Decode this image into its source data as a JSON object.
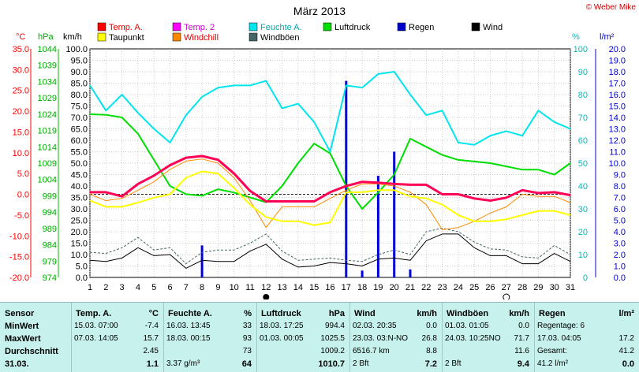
{
  "chart_data": {
    "type": "line",
    "title": "März 2013",
    "copyright": "© Weber Mike",
    "x": [
      1,
      2,
      3,
      4,
      5,
      6,
      7,
      8,
      9,
      10,
      11,
      12,
      13,
      14,
      15,
      16,
      17,
      18,
      19,
      20,
      21,
      22,
      23,
      24,
      25,
      26,
      27,
      28,
      29,
      30,
      31
    ],
    "x_ticks": [
      1,
      2,
      3,
      4,
      5,
      6,
      7,
      8,
      9,
      10,
      11,
      12,
      13,
      14,
      15,
      16,
      17,
      18,
      19,
      20,
      21,
      22,
      23,
      24,
      25,
      26,
      27,
      28,
      29,
      30,
      31
    ],
    "xlim": [
      1,
      31
    ],
    "axes": {
      "temp": {
        "label": "°C",
        "ylim": [
          -20,
          35
        ],
        "color": "#ff0000",
        "ticks": [
          "35.0",
          "30.0",
          "25.0",
          "20.0",
          "15.0",
          "10.0",
          "5.0",
          "0.0",
          "-5.0",
          "-10.0",
          "-15.0",
          "-20.0"
        ]
      },
      "pressure": {
        "label": "hPa",
        "ylim": [
          974,
          1044
        ],
        "color": "#00aa00",
        "ticks": [
          "1044",
          "1039",
          "1034",
          "1029",
          "1024",
          "1019",
          "1014",
          "1009",
          "1004",
          "999",
          "994",
          "989",
          "984",
          "979",
          "974"
        ]
      },
      "wind": {
        "label": "km/h",
        "ylim": [
          0,
          100
        ],
        "color": "#000000",
        "ticks": [
          "100.0",
          "95.0",
          "90.0",
          "85.0",
          "80.0",
          "75.0",
          "70.0",
          "65.0",
          "60.0",
          "55.0",
          "50.0",
          "45.0",
          "40.0",
          "35.0",
          "30.0",
          "25.0",
          "20.0",
          "15.0",
          "10.0",
          "5.0",
          "0.0"
        ]
      },
      "humidity": {
        "label": "%",
        "ylim": [
          0,
          100
        ],
        "color": "#00cccc",
        "ticks": [
          "100",
          "90",
          "80",
          "70",
          "60",
          "50",
          "40",
          "30",
          "20",
          "10",
          "0"
        ]
      },
      "rain": {
        "label": "l/m²",
        "ylim": [
          0,
          20
        ],
        "color": "#0000cc",
        "ticks": [
          "20.0",
          "19.0",
          "18.0",
          "17.0",
          "16.0",
          "15.0",
          "14.0",
          "13.0",
          "12.0",
          "11.0",
          "10.0",
          "9.0",
          "8.0",
          "7.0",
          "6.0",
          "5.0",
          "4.0",
          "3.0",
          "2.0",
          "1.0",
          "0.0"
        ]
      }
    },
    "series": [
      {
        "name": "Temp. A.",
        "axis": "temp",
        "color": "#ff0055",
        "width": 3,
        "values": [
          0.5,
          0.5,
          -0.5,
          2.5,
          4.5,
          7.0,
          8.8,
          9.2,
          8.3,
          5.0,
          0.8,
          -1.7,
          -1.7,
          -1.7,
          -1.7,
          0.5,
          2.0,
          3.0,
          2.8,
          2.5,
          2.3,
          2.3,
          0.0,
          0.0,
          -1.0,
          -1.5,
          -0.8,
          1.0,
          0.3,
          0.5,
          -0.2
        ]
      },
      {
        "name": "Temp. 2",
        "axis": "temp",
        "color": "#ff33cc",
        "width": 1,
        "values": [
          0.5,
          0.5,
          -0.3,
          2.6,
          4.7,
          7.2,
          8.9,
          9.4,
          8.5,
          5.2,
          1.0,
          -1.6,
          -1.6,
          -1.6,
          -1.6,
          0.6,
          2.1,
          3.1,
          2.9,
          2.6,
          2.4,
          2.4,
          0.1,
          0.1,
          -0.9,
          -1.4,
          -0.7,
          1.1,
          0.4,
          0.6,
          -0.1
        ]
      },
      {
        "name": "Taupunkt",
        "axis": "temp",
        "color": "#ffff00",
        "width": 2,
        "values": [
          -1.5,
          -3.0,
          -3.0,
          -2.0,
          -0.8,
          0.0,
          4.0,
          5.5,
          5.0,
          1.5,
          -2.5,
          -5.5,
          -6.5,
          -6.5,
          -7.4,
          -6.8,
          0.5,
          0.5,
          1.0,
          1.0,
          -0.5,
          -1.0,
          -2.5,
          -5.0,
          -6.5,
          -6.5,
          -6.0,
          -5.0,
          -4.0,
          -4.0,
          -5.0
        ]
      },
      {
        "name": "Windchill",
        "axis": "temp",
        "color": "#ff8800",
        "width": 1,
        "values": [
          0.0,
          -1.5,
          -1.0,
          1.0,
          3.0,
          6.0,
          8.0,
          8.5,
          7.5,
          4.0,
          -1.5,
          -8.0,
          -3.0,
          -3.0,
          -3.0,
          -1.0,
          1.0,
          2.5,
          2.5,
          2.0,
          0.5,
          -2.5,
          -8.5,
          -8.0,
          -6.5,
          -4.5,
          -3.0,
          0.0,
          -0.5,
          -0.5,
          -2.0
        ]
      },
      {
        "name": "Feuchte A.",
        "axis": "humidity",
        "color": "#00e5ee",
        "width": 2,
        "values": [
          84,
          73,
          80,
          72,
          65,
          59,
          71,
          79,
          83,
          84,
          84,
          86,
          74,
          76,
          68,
          55,
          84,
          83,
          89,
          90,
          80,
          71,
          73,
          59,
          58,
          62,
          64,
          62,
          73,
          68,
          65
        ]
      },
      {
        "name": "Luftdruck",
        "axis": "pressure",
        "color": "#00dd00",
        "width": 2,
        "values": [
          1024.0,
          1023.8,
          1023.0,
          1018.0,
          1010.0,
          1002.0,
          999.5,
          999.0,
          1001.0,
          1000.0,
          998.5,
          997.0,
          1002.0,
          1009.0,
          1015.0,
          1012.0,
          1002.0,
          995.0,
          1000.0,
          1005.5,
          1016.5,
          1014.0,
          1011.5,
          1010.0,
          1009.5,
          1009.0,
          1008.0,
          1007.0,
          1007.0,
          1005.5,
          1009.0
        ]
      },
      {
        "name": "Regen",
        "axis": "rain",
        "color": "#0000dd",
        "width": 3,
        "bars": [
          {
            "x": 8,
            "v": 2.8
          },
          {
            "x": 17,
            "v": 17.2
          },
          {
            "x": 18,
            "v": 0.6
          },
          {
            "x": 19,
            "v": 8.9
          },
          {
            "x": 20,
            "v": 11.0
          },
          {
            "x": 21,
            "v": 0.7
          }
        ]
      },
      {
        "name": "Wind",
        "axis": "wind",
        "color": "#000000",
        "width": 1,
        "values": [
          7.5,
          7.0,
          8.5,
          13.0,
          9.5,
          10.0,
          4.0,
          7.5,
          7.0,
          7.0,
          11.5,
          14.5,
          8.0,
          4.5,
          5.0,
          6.5,
          6.0,
          5.0,
          8.0,
          8.5,
          7.5,
          16.0,
          19.0,
          19.0,
          13.0,
          9.5,
          9.5,
          6.0,
          6.0,
          10.5,
          7.0
        ]
      },
      {
        "name": "Windböen",
        "axis": "wind",
        "color": "#446666",
        "width": 1,
        "dashed": true,
        "values": [
          11.0,
          10.5,
          13.0,
          17.5,
          12.0,
          13.0,
          6.0,
          11.0,
          12.0,
          12.0,
          15.0,
          19.0,
          11.5,
          7.5,
          8.0,
          8.5,
          7.5,
          7.0,
          10.0,
          12.0,
          10.0,
          20.0,
          21.5,
          20.0,
          15.5,
          12.5,
          12.0,
          9.0,
          8.5,
          14.0,
          10.0
        ]
      }
    ],
    "legend": [
      {
        "label": "Temp. A.",
        "color": "#ff0000"
      },
      {
        "label": "Temp. 2",
        "color": "#ff00ff"
      },
      {
        "label": "Feuchte A.",
        "color": "#00e5ee"
      },
      {
        "label": "Luftdruck",
        "color": "#00dd00"
      },
      {
        "label": "Regen",
        "color": "#0000cc"
      },
      {
        "label": "Wind",
        "color": "#000000"
      },
      {
        "label": "Taupunkt",
        "color": "#ffff00"
      },
      {
        "label": "Windchill",
        "color": "#ff8800"
      },
      {
        "label": "Windböen",
        "color": "#446666"
      }
    ],
    "grid": true
  },
  "stats": {
    "columns": [
      {
        "header": "Sensor",
        "unit": "",
        "rows": [
          "MinWert",
          "MaxWert",
          "Durchschnitt"
        ],
        "last": "31.03."
      },
      {
        "header": "Temp. A.",
        "unit": "°C",
        "rows": [
          [
            "15.03.  07:00",
            "-7.4"
          ],
          [
            "07.03.  14:05",
            "15.7"
          ],
          [
            "",
            "2.45"
          ]
        ],
        "last": [
          "",
          "1.1"
        ]
      },
      {
        "header": "Feuchte A.",
        "unit": "%",
        "rows": [
          [
            "16.03.  13:45",
            "33"
          ],
          [
            "18.03.  00:15",
            "93"
          ],
          [
            "",
            "73"
          ]
        ],
        "last": [
          "3.37 g/m³",
          "64"
        ]
      },
      {
        "header": "Luftdruck",
        "unit": "hPa",
        "rows": [
          [
            "18.03.  17:25",
            "994.4"
          ],
          [
            "01.03.  00:05",
            "1025.5"
          ],
          [
            "",
            "1009.2"
          ]
        ],
        "last": [
          "",
          "1010.7"
        ]
      },
      {
        "header": "Wind",
        "unit": "km/h",
        "rows": [
          [
            "02.03.  20:35",
            "0.0"
          ],
          [
            "23.03.  03:N-NO",
            "26.8"
          ],
          [
            "6516.7 km",
            "8.8"
          ]
        ],
        "last": [
          "2 Bft",
          "7.2"
        ]
      },
      {
        "header": "Windböen",
        "unit": "km/h",
        "rows": [
          [
            "01.03.  01:05",
            "0.0"
          ],
          [
            "24.03.  10:25NO",
            "71.7"
          ],
          [
            "",
            "11.6"
          ]
        ],
        "last": [
          "2 Bft",
          "9.4"
        ]
      },
      {
        "header": "Regen",
        "unit": "l/m²",
        "rows": [
          [
            "Regentage: 6",
            ""
          ],
          [
            "17.03.  04:05",
            "17.2"
          ],
          [
            "Gesamt:",
            "41.2"
          ]
        ],
        "last": [
          "41.2 l/m²",
          "0.0"
        ]
      }
    ]
  }
}
